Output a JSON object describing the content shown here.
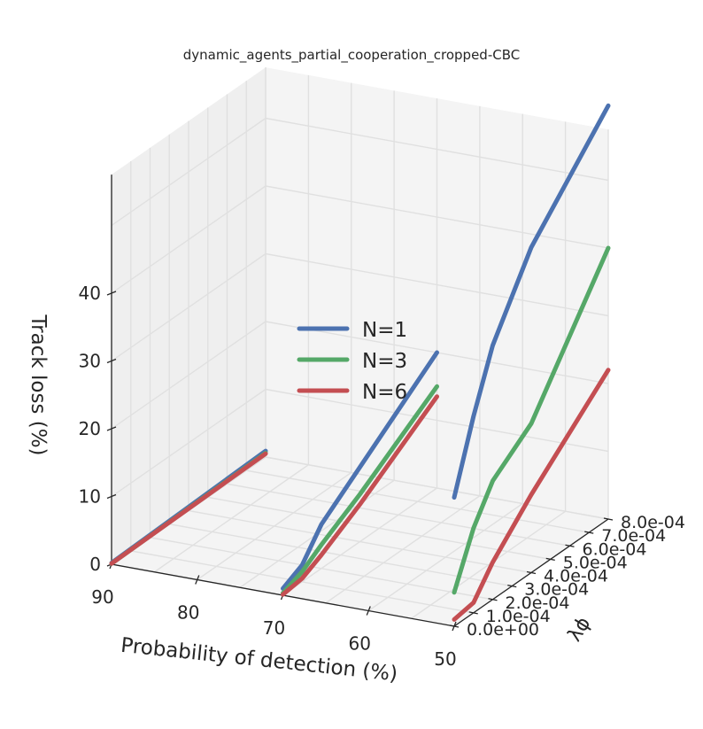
{
  "chart_data": {
    "type": "line",
    "projection": "3d",
    "title": "dynamic_agents_partial_cooperation_cropped-CBC",
    "xlabel": "Probability of detection (%)",
    "ylabel": "λϕ",
    "zlabel": "Track loss (%)",
    "x_ticks": [
      "90",
      "80",
      "70",
      "60",
      "50"
    ],
    "y_ticks": [
      "0.0e+00",
      "1.0e-04",
      "2.0e-04",
      "3.0e-04",
      "4.0e-04",
      "5.0e-04",
      "6.0e-04",
      "7.0e-04",
      "8.0e-04"
    ],
    "z_ticks": [
      "0",
      "10",
      "20",
      "30",
      "40"
    ],
    "grid": true,
    "legend_position": "center",
    "colors": {
      "N=1": "#4c72b0",
      "N=3": "#55a868",
      "N=6": "#c44e52",
      "pane": "#f4f4f4",
      "grid": "#e0e0e0"
    },
    "panels": [
      {
        "pd": 90,
        "lambda": [
          0.0,
          0.0008
        ],
        "series": [
          {
            "name": "N=1",
            "track_loss": [
              0.2,
              0.9
            ]
          },
          {
            "name": "N=3",
            "track_loss": [
              0.1,
              0.6
            ]
          },
          {
            "name": "N=6",
            "track_loss": [
              0.1,
              0.5
            ]
          }
        ]
      },
      {
        "pd": 70,
        "lambda": [
          0.0,
          0.0001,
          0.0002,
          0.0004,
          0.0008
        ],
        "series": [
          {
            "name": "N=1",
            "track_loss": [
              1.0,
              2.5,
              6.5,
              11.0,
              20.0
            ]
          },
          {
            "name": "N=3",
            "track_loss": [
              0.3,
              1.5,
              3.5,
              7.0,
              15.0
            ]
          },
          {
            "name": "N=6",
            "track_loss": [
              0.1,
              0.5,
              2.0,
              5.5,
              13.5
            ]
          }
        ]
      },
      {
        "pd": 50,
        "lambda": [
          0.0,
          0.0001,
          0.0002,
          0.0004,
          0.0008
        ],
        "series": [
          {
            "name": "N=1",
            "track_loss": [
              19.0,
              29.0,
              37.5,
              48.0,
              61.0
            ]
          },
          {
            "name": "N=3",
            "track_loss": [
              5.0,
              12.5,
              17.5,
              22.0,
              40.0
            ]
          },
          {
            "name": "N=6",
            "track_loss": [
              1.0,
              1.5,
              5.5,
              11.5,
              22.0
            ]
          }
        ]
      }
    ]
  }
}
